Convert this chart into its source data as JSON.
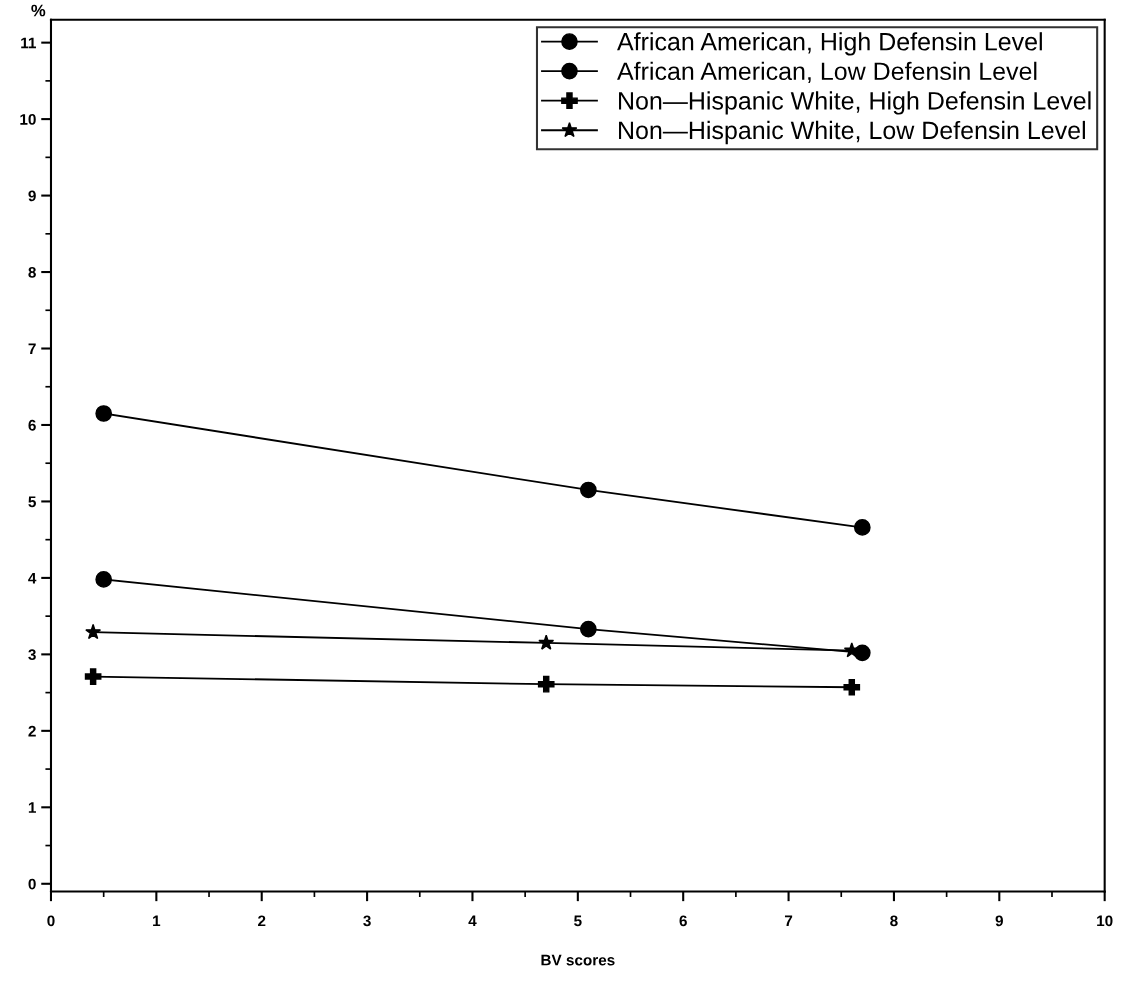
{
  "chart_data": {
    "type": "line",
    "xlabel": "BV scores",
    "ylabel": "%",
    "xlim": [
      0,
      10
    ],
    "xticks": [
      0,
      1,
      2,
      3,
      4,
      5,
      6,
      7,
      8,
      9,
      10
    ],
    "ylim": [
      -0.1,
      11.3
    ],
    "yticks": [
      0,
      1,
      2,
      3,
      4,
      5,
      6,
      7,
      8,
      9,
      10,
      11
    ],
    "grid": false,
    "legend": "top right",
    "line_style": "solid",
    "series": [
      {
        "name": "African American, High Defensin Level",
        "color": "#000000",
        "marker": "circle",
        "x": [
          0.5,
          5.1,
          7.7
        ],
        "values": [
          3.98,
          3.33,
          3.02
        ]
      },
      {
        "name": "African American, Low Defensin Level",
        "color": "#000000",
        "marker": "circle",
        "x": [
          0.5,
          5.1,
          7.7
        ],
        "values": [
          6.15,
          5.15,
          4.66
        ]
      },
      {
        "name": "Non—Hispanic White, High Defensin Level",
        "color": "#000000",
        "marker": "cross",
        "x": [
          0.4,
          4.7,
          7.6
        ],
        "values": [
          2.71,
          2.61,
          2.57
        ]
      },
      {
        "name": "Non—Hispanic White, Low Defensin Level",
        "color": "#000000",
        "marker": "star",
        "x": [
          0.4,
          4.7,
          7.6
        ],
        "values": [
          3.29,
          3.15,
          3.05
        ]
      }
    ]
  }
}
